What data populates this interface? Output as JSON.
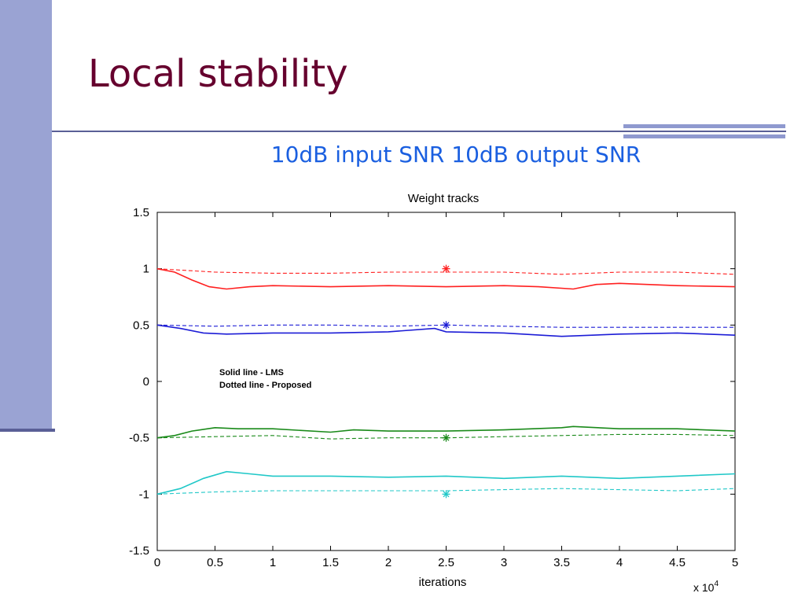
{
  "slide": {
    "title": "Local stability",
    "subtitle": "10dB input SNR 10dB output SNR"
  },
  "chart_data": {
    "type": "line",
    "title": "Weight tracks",
    "xlabel": "iterations",
    "ylabel": "",
    "x_multiplier": "x 10",
    "x_multiplier_exp": "4",
    "xlim": [
      0,
      5
    ],
    "ylim": [
      -1.5,
      1.5
    ],
    "xticks": [
      "0",
      "0.5",
      "1",
      "1.5",
      "2",
      "2.5",
      "3",
      "3.5",
      "4",
      "4.5",
      "5"
    ],
    "yticks": [
      "1.5",
      "1",
      "0.5",
      "0",
      "-0.5",
      "-1",
      "-1.5"
    ],
    "grid": false,
    "annotation": [
      "Solid line - LMS",
      "Dotted line - Proposed"
    ],
    "series": [
      {
        "style": "solid",
        "color": "#ff2020",
        "x": [
          0,
          0.15,
          0.3,
          0.45,
          0.6,
          0.8,
          1.0,
          1.5,
          2.0,
          2.5,
          3.0,
          3.3,
          3.6,
          3.8,
          4.0,
          4.5,
          5.0
        ],
        "y": [
          1.0,
          0.97,
          0.9,
          0.84,
          0.82,
          0.84,
          0.85,
          0.84,
          0.85,
          0.84,
          0.85,
          0.84,
          0.82,
          0.86,
          0.87,
          0.85,
          0.84
        ]
      },
      {
        "style": "dashed",
        "color": "#ff2020",
        "x": [
          0,
          0.5,
          1.0,
          1.5,
          2.0,
          2.5,
          3.0,
          3.5,
          4.0,
          4.5,
          5.0
        ],
        "y": [
          1.0,
          0.97,
          0.96,
          0.96,
          0.97,
          0.97,
          0.97,
          0.95,
          0.97,
          0.97,
          0.95
        ]
      },
      {
        "style": "solid",
        "color": "#1c1cd6",
        "x": [
          0,
          0.2,
          0.4,
          0.6,
          1.0,
          1.5,
          2.0,
          2.4,
          2.5,
          3.0,
          3.5,
          4.0,
          4.5,
          5.0
        ],
        "y": [
          0.5,
          0.47,
          0.43,
          0.42,
          0.43,
          0.43,
          0.44,
          0.47,
          0.44,
          0.43,
          0.4,
          0.42,
          0.43,
          0.41
        ]
      },
      {
        "style": "dashed",
        "color": "#1c1cd6",
        "x": [
          0,
          0.5,
          1.0,
          1.5,
          2.0,
          2.5,
          3.0,
          3.5,
          4.0,
          4.5,
          5.0
        ],
        "y": [
          0.5,
          0.49,
          0.5,
          0.5,
          0.49,
          0.5,
          0.49,
          0.48,
          0.48,
          0.48,
          0.48
        ]
      },
      {
        "style": "solid",
        "color": "#1a8a1a",
        "x": [
          0,
          0.15,
          0.3,
          0.5,
          0.7,
          1.0,
          1.5,
          1.7,
          2.0,
          2.5,
          3.0,
          3.5,
          3.6,
          4.0,
          4.5,
          5.0
        ],
        "y": [
          -0.5,
          -0.48,
          -0.44,
          -0.41,
          -0.42,
          -0.42,
          -0.45,
          -0.43,
          -0.44,
          -0.44,
          -0.43,
          -0.41,
          -0.4,
          -0.42,
          -0.42,
          -0.44
        ]
      },
      {
        "style": "dashed",
        "color": "#1a8a1a",
        "x": [
          0,
          0.5,
          1.0,
          1.5,
          2.0,
          2.5,
          3.0,
          3.5,
          4.0,
          4.5,
          5.0
        ],
        "y": [
          -0.5,
          -0.49,
          -0.48,
          -0.51,
          -0.5,
          -0.5,
          -0.49,
          -0.48,
          -0.47,
          -0.47,
          -0.48
        ]
      },
      {
        "style": "solid",
        "color": "#20c8c8",
        "x": [
          0,
          0.2,
          0.4,
          0.6,
          0.8,
          1.0,
          1.5,
          2.0,
          2.5,
          3.0,
          3.5,
          4.0,
          4.5,
          5.0
        ],
        "y": [
          -1.0,
          -0.95,
          -0.86,
          -0.8,
          -0.82,
          -0.84,
          -0.84,
          -0.85,
          -0.84,
          -0.86,
          -0.84,
          -0.86,
          -0.84,
          -0.82
        ]
      },
      {
        "style": "dashed",
        "color": "#20c8c8",
        "x": [
          0,
          0.5,
          1.0,
          1.5,
          2.0,
          2.5,
          3.0,
          3.5,
          4.0,
          4.5,
          5.0
        ],
        "y": [
          -1.0,
          -0.98,
          -0.97,
          -0.97,
          -0.97,
          -0.97,
          -0.96,
          -0.95,
          -0.96,
          -0.97,
          -0.95
        ]
      }
    ],
    "markers": [
      {
        "x": 2.5,
        "y": 1.0,
        "color": "#ff2020"
      },
      {
        "x": 2.5,
        "y": 0.5,
        "color": "#1c1cd6"
      },
      {
        "x": 2.5,
        "y": -0.5,
        "color": "#1a8a1a"
      },
      {
        "x": 2.5,
        "y": -1.0,
        "color": "#20c8c8"
      }
    ]
  }
}
